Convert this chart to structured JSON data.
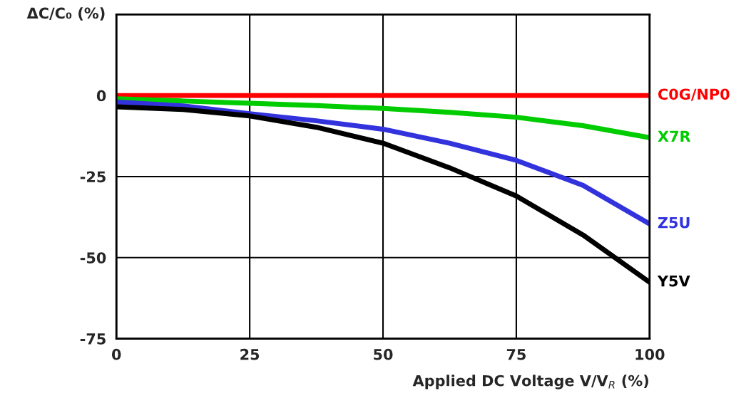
{
  "chart_data": {
    "type": "line",
    "ylabel": "ΔC/C₀ (%)",
    "xlabel": "Applied DC Voltage V/V$_{R}$ (%)",
    "x": [
      0,
      12.5,
      25,
      37.5,
      50,
      62.5,
      75,
      87.5,
      100
    ],
    "series": [
      {
        "name": "C0G/NP0",
        "color": "#ff0000",
        "values": [
          0,
          0,
          0,
          0,
          0,
          0,
          0,
          0,
          0
        ]
      },
      {
        "name": "X7R",
        "color": "#00cc00",
        "values": [
          -1,
          -1.7,
          -2.4,
          -3.1,
          -4,
          -5.2,
          -6.7,
          -9.3,
          -13
        ]
      },
      {
        "name": "Z5U",
        "color": "#3333dd",
        "values": [
          -2,
          -3.2,
          -5.6,
          -7.8,
          -10.4,
          -14.7,
          -20,
          -27.7,
          -39.6
        ]
      },
      {
        "name": "Y5V",
        "color": "#000000",
        "values": [
          -3.5,
          -4.3,
          -6.3,
          -9.8,
          -14.7,
          -22.3,
          -31,
          -43,
          -57.6
        ]
      }
    ],
    "xlim": [
      0,
      100
    ],
    "ylim": [
      -75,
      25
    ],
    "xticks": [
      0,
      25,
      50,
      75,
      100
    ],
    "yticks": [
      -75,
      -50,
      -25,
      0
    ],
    "grid": true,
    "legend": false,
    "marker": "none",
    "line_style": "solid"
  }
}
